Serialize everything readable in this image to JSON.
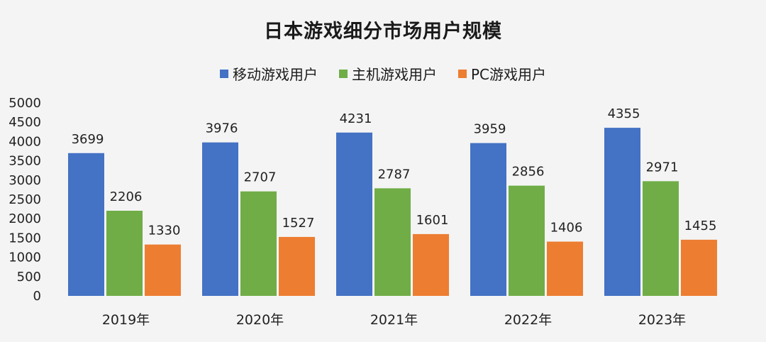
{
  "chart_data": {
    "type": "bar",
    "title": "日本游戏细分市场用户规模",
    "categories": [
      "2019年",
      "2020年",
      "2021年",
      "2022年",
      "2023年"
    ],
    "series": [
      {
        "name": "移动游戏用户",
        "color": "#4472c4",
        "values": [
          3699,
          3976,
          4231,
          3959,
          4355
        ]
      },
      {
        "name": "主机游戏用户",
        "color": "#70ad47",
        "values": [
          2206,
          2707,
          2787,
          2856,
          2971
        ]
      },
      {
        "name": "PC游戏用户",
        "color": "#ed7d31",
        "values": [
          1330,
          1527,
          1601,
          1406,
          1455
        ]
      }
    ],
    "ylim": [
      0,
      5000
    ],
    "yticks": [
      0,
      500,
      1000,
      1500,
      2000,
      2500,
      3000,
      3500,
      4000,
      4500,
      5000
    ],
    "legend_position": "top",
    "grid": false,
    "data_labels": true
  }
}
